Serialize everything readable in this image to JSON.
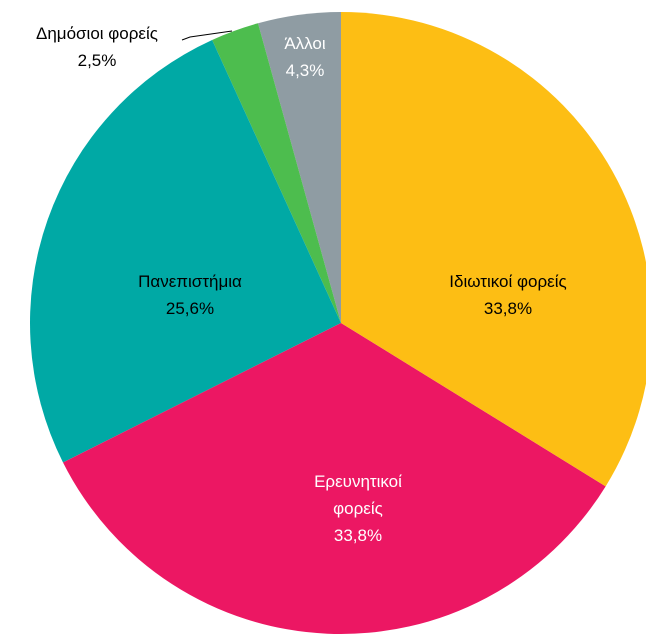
{
  "chart_data": {
    "type": "pie",
    "categories": [
      "Ιδιωτικοί φορείς",
      "Ερευνητικοί φορείς",
      "Πανεπιστήμια",
      "Δημόσιοι φορείς",
      "Άλλοι"
    ],
    "values": [
      33.8,
      33.8,
      25.6,
      2.5,
      4.3
    ],
    "value_labels": [
      "33,8%",
      "33,8%",
      "25,6%",
      "2,5%",
      "4,3%"
    ],
    "colors": [
      "#fdbe14",
      "#ec1763",
      "#00a9a5",
      "#4dbd4e",
      "#8f9ca3"
    ]
  }
}
